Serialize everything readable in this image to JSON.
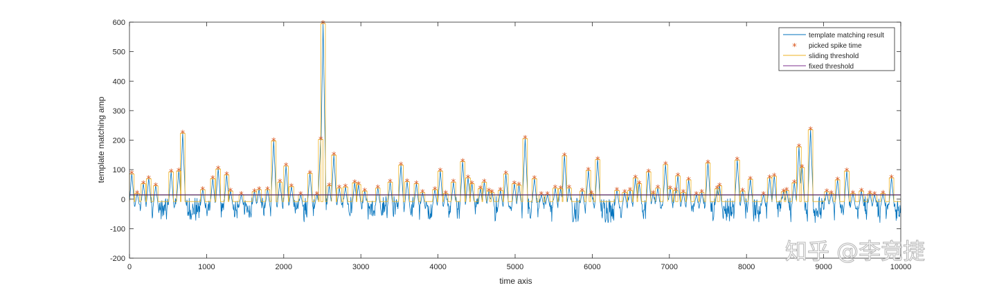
{
  "chart_data": {
    "type": "line",
    "title": "",
    "xlabel": "time axis",
    "ylabel": "template matching amp",
    "xlim": [
      0,
      10000
    ],
    "ylim": [
      -200,
      600
    ],
    "xticks": [
      0,
      1000,
      2000,
      3000,
      4000,
      5000,
      6000,
      7000,
      8000,
      9000,
      10000
    ],
    "yticks": [
      -200,
      -100,
      0,
      100,
      200,
      300,
      400,
      500,
      600
    ],
    "grid": false,
    "legend_placement": "top-right",
    "colors": {
      "result": "#0072BD",
      "picked": "#D95319",
      "sliding": "#EDB120",
      "fixed": "#7E2F8E",
      "baseline": "#262626"
    },
    "series": [
      {
        "name": "template matching result",
        "style": "line",
        "note": "noise band roughly -100..20 with spikes at picked times"
      },
      {
        "name": "picked spike time",
        "style": "marker-asterisk",
        "points": [
          [
            30,
            88
          ],
          [
            100,
            22
          ],
          [
            180,
            55
          ],
          [
            250,
            72
          ],
          [
            340,
            48
          ],
          [
            540,
            95
          ],
          [
            640,
            98
          ],
          [
            690,
            226
          ],
          [
            950,
            35
          ],
          [
            1080,
            72
          ],
          [
            1150,
            105
          ],
          [
            1260,
            85
          ],
          [
            1310,
            30
          ],
          [
            1450,
            18
          ],
          [
            1620,
            28
          ],
          [
            1680,
            35
          ],
          [
            1790,
            35
          ],
          [
            1870,
            200
          ],
          [
            1950,
            60
          ],
          [
            2030,
            115
          ],
          [
            2100,
            45
          ],
          [
            2220,
            18
          ],
          [
            2340,
            90
          ],
          [
            2430,
            18
          ],
          [
            2480,
            205
          ],
          [
            2510,
            598
          ],
          [
            2590,
            48
          ],
          [
            2650,
            152
          ],
          [
            2720,
            40
          ],
          [
            2800,
            44
          ],
          [
            2920,
            58
          ],
          [
            2970,
            52
          ],
          [
            3050,
            30
          ],
          [
            3220,
            40
          ],
          [
            3380,
            60
          ],
          [
            3520,
            118
          ],
          [
            3600,
            62
          ],
          [
            3720,
            55
          ],
          [
            3800,
            25
          ],
          [
            3960,
            35
          ],
          [
            4030,
            98
          ],
          [
            4100,
            22
          ],
          [
            4200,
            60
          ],
          [
            4320,
            130
          ],
          [
            4390,
            75
          ],
          [
            4440,
            55
          ],
          [
            4550,
            38
          ],
          [
            4600,
            60
          ],
          [
            4660,
            30
          ],
          [
            4700,
            25
          ],
          [
            4810,
            32
          ],
          [
            4880,
            88
          ],
          [
            4990,
            55
          ],
          [
            5050,
            50
          ],
          [
            5130,
            208
          ],
          [
            5250,
            72
          ],
          [
            5340,
            18
          ],
          [
            5420,
            18
          ],
          [
            5520,
            40
          ],
          [
            5590,
            38
          ],
          [
            5640,
            150
          ],
          [
            5700,
            40
          ],
          [
            5870,
            30
          ],
          [
            5950,
            100
          ],
          [
            5990,
            22
          ],
          [
            6070,
            137
          ],
          [
            6320,
            32
          ],
          [
            6420,
            25
          ],
          [
            6490,
            32
          ],
          [
            6560,
            75
          ],
          [
            6610,
            55
          ],
          [
            6730,
            95
          ],
          [
            6790,
            22
          ],
          [
            6850,
            40
          ],
          [
            6950,
            120
          ],
          [
            7010,
            38
          ],
          [
            7080,
            32
          ],
          [
            7110,
            82
          ],
          [
            7180,
            25
          ],
          [
            7250,
            68
          ],
          [
            7350,
            18
          ],
          [
            7420,
            25
          ],
          [
            7500,
            125
          ],
          [
            7620,
            38
          ],
          [
            7650,
            48
          ],
          [
            7880,
            135
          ],
          [
            7950,
            30
          ],
          [
            8050,
            70
          ],
          [
            8220,
            18
          ],
          [
            8300,
            75
          ],
          [
            8360,
            80
          ],
          [
            8480,
            28
          ],
          [
            8520,
            32
          ],
          [
            8620,
            58
          ],
          [
            8680,
            180
          ],
          [
            8720,
            110
          ],
          [
            8830,
            238
          ],
          [
            9040,
            28
          ],
          [
            9100,
            22
          ],
          [
            9180,
            68
          ],
          [
            9300,
            98
          ],
          [
            9380,
            22
          ],
          [
            9490,
            30
          ],
          [
            9600,
            22
          ],
          [
            9660,
            18
          ],
          [
            9770,
            22
          ],
          [
            9880,
            75
          ]
        ]
      },
      {
        "name": "sliding threshold",
        "style": "line",
        "note": "step function hugging each picked spike"
      },
      {
        "name": "fixed threshold",
        "style": "line",
        "value": 15
      }
    ],
    "watermark": "知乎 @李竞捷"
  }
}
